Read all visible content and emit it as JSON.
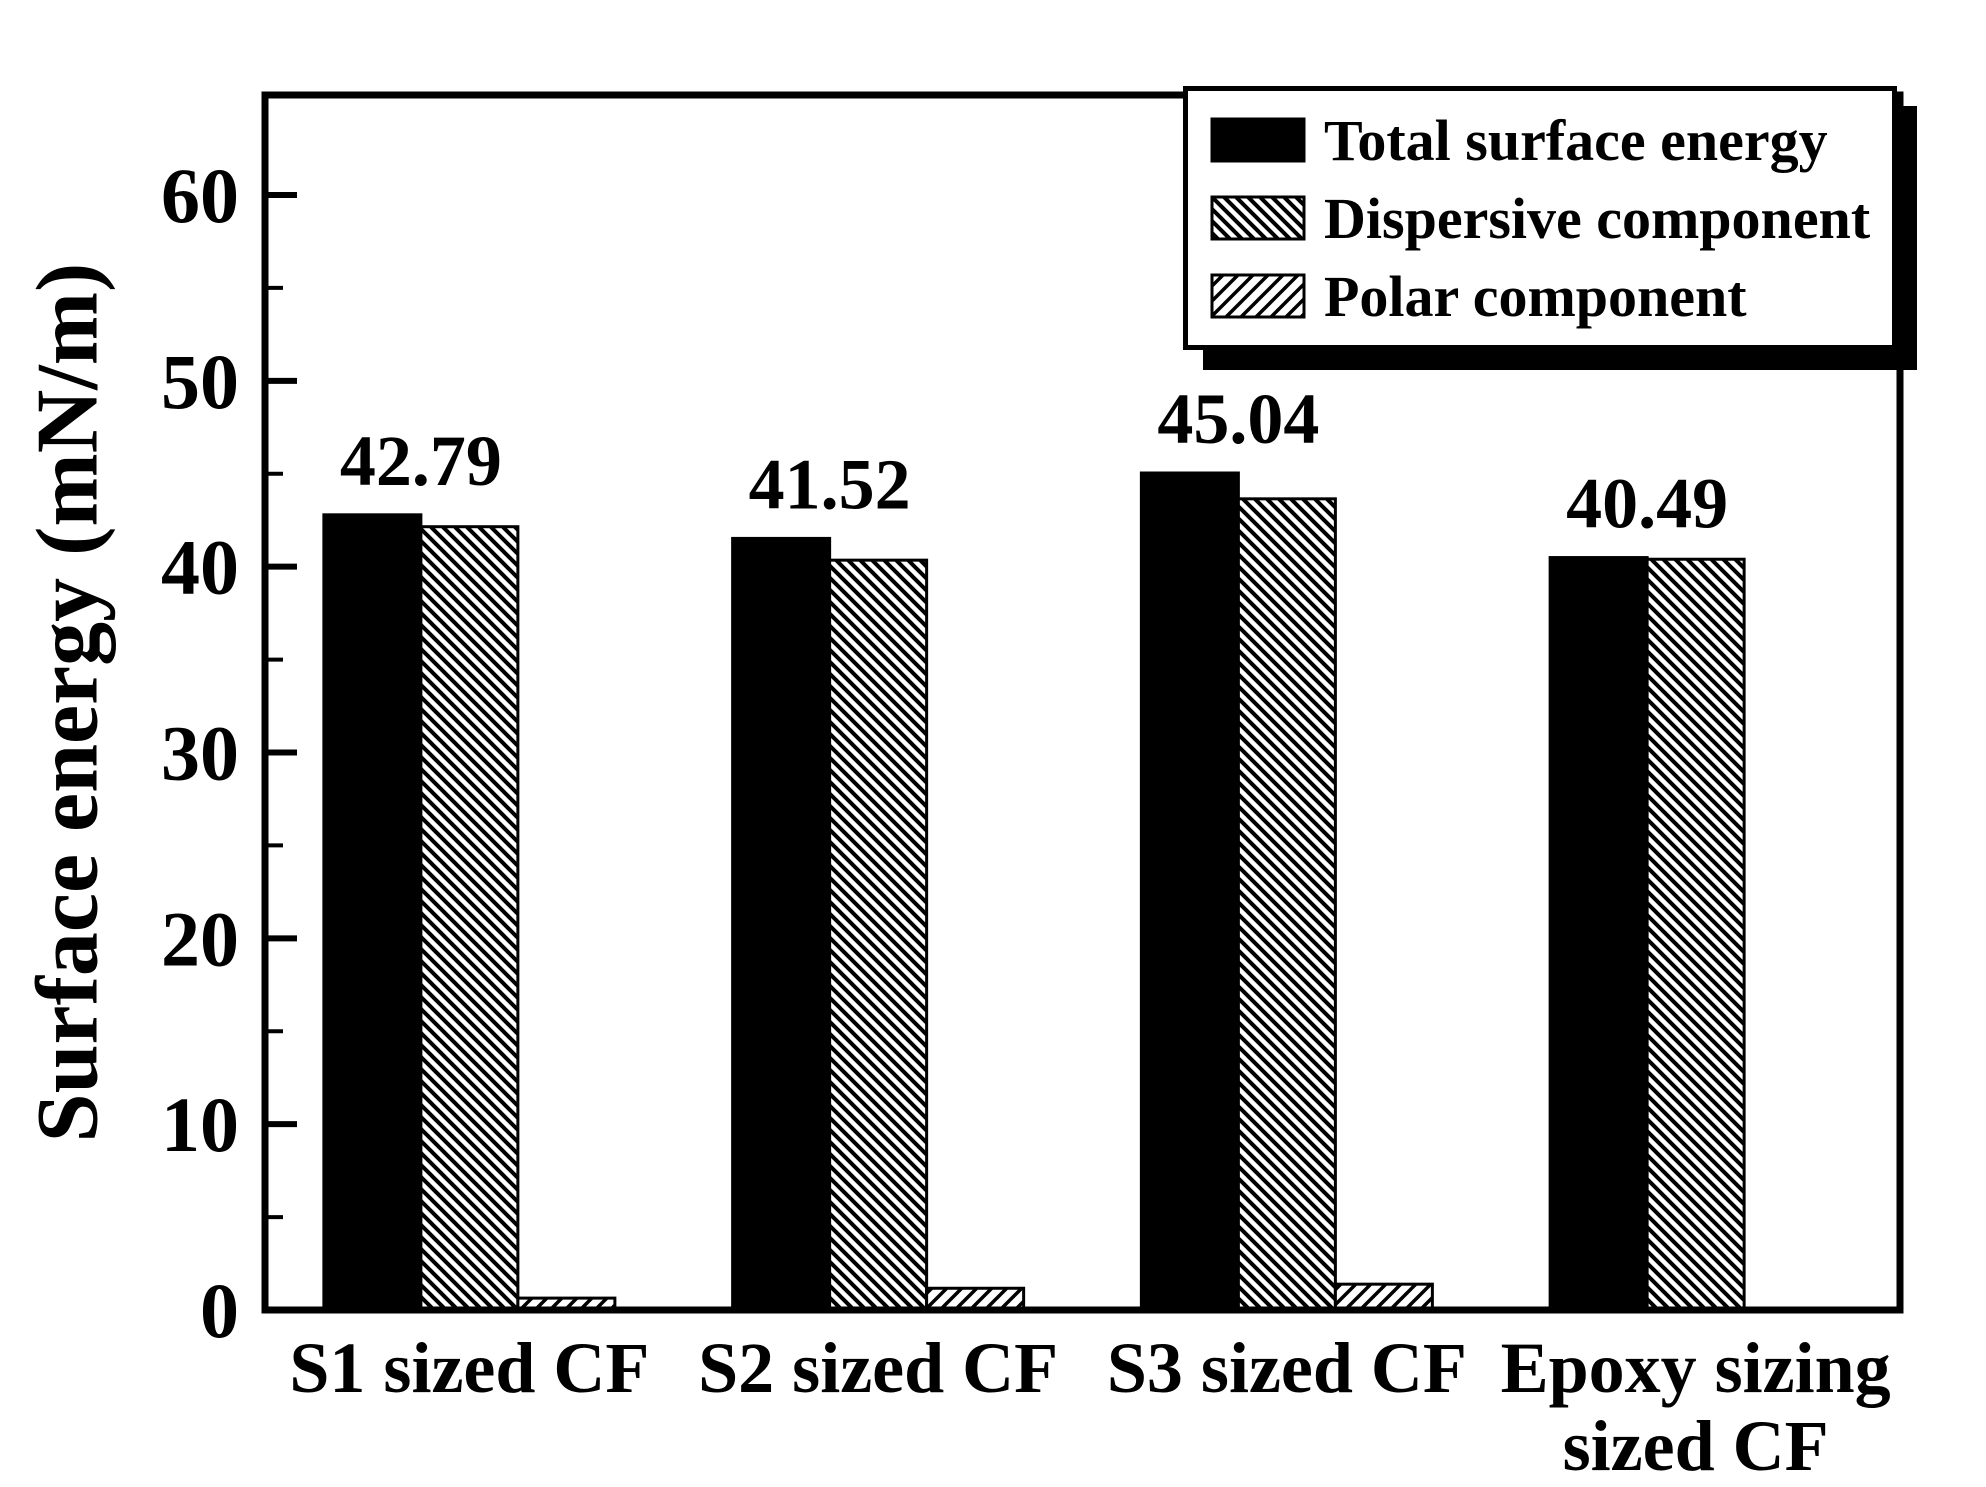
{
  "chart_data": {
    "type": "bar",
    "title": "",
    "xlabel": "",
    "ylabel": "Surface energy (mN/m)",
    "categories": [
      "S1 sized CF",
      "S2 sized CF",
      "S3 sized CF",
      "Epoxy sizing\nsized CF"
    ],
    "series": [
      {
        "name": "Total surface energy",
        "pattern": "solid-black",
        "color": "#000000",
        "values": [
          42.79,
          41.52,
          45.04,
          40.49
        ]
      },
      {
        "name": "Dispersive component",
        "pattern": "hatch-backslash",
        "color": "#000000",
        "values": [
          42.15,
          40.35,
          43.65,
          40.4
        ]
      },
      {
        "name": "Polar component",
        "pattern": "hatch-slash",
        "color": "#000000",
        "values": [
          0.64,
          1.17,
          1.39,
          0.09
        ]
      }
    ],
    "bar_labels": [
      "42.79",
      "41.52",
      "45.04",
      "40.49"
    ],
    "yticks": [
      0,
      10,
      20,
      30,
      40,
      50,
      60
    ],
    "ylim": [
      0,
      65
    ],
    "grid": false,
    "legend_position": "top-right"
  }
}
